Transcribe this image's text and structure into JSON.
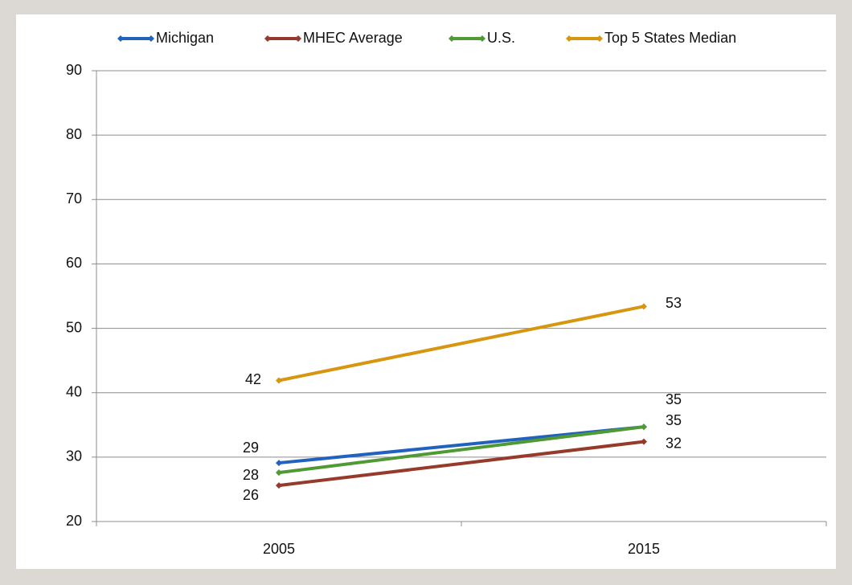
{
  "chart_data": {
    "type": "line",
    "categories": [
      "2005",
      "2015"
    ],
    "series": [
      {
        "name": "Michigan",
        "color": "#2162bf",
        "values": [
          29.1,
          34.7
        ],
        "value_labels": [
          "29",
          "35"
        ]
      },
      {
        "name": "MHEC Average",
        "color": "#963a2c",
        "values": [
          25.6,
          32.4
        ],
        "value_labels": [
          "26",
          "32"
        ]
      },
      {
        "name": "U.S.",
        "color": "#4f9a34",
        "values": [
          27.6,
          34.7
        ],
        "value_labels": [
          "28",
          "35"
        ]
      },
      {
        "name": "Top 5 States Median",
        "color": "#d6960f",
        "values": [
          41.9,
          53.4
        ],
        "value_labels": [
          "42",
          "53"
        ]
      }
    ],
    "ylim": [
      20,
      90
    ],
    "yticks": [
      20,
      30,
      40,
      50,
      60,
      70,
      80,
      90
    ],
    "grid": true,
    "legend": "top"
  }
}
